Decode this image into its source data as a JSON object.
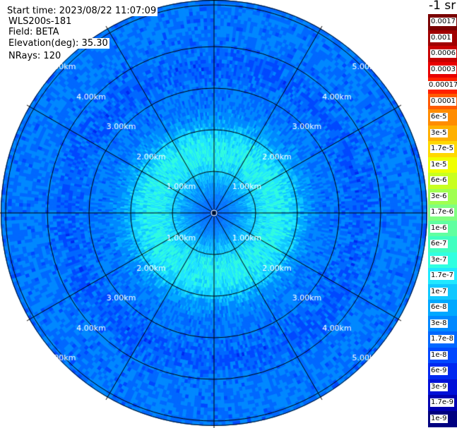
{
  "info": {
    "start_time": "Start time: 2023/08/22 11:07:09",
    "instrument": "WLS200s-181",
    "field": "Field: BETA",
    "elevation": "Elevation(deg): 35.30",
    "nrays": "NRays: 120"
  },
  "unit": "-1 sr",
  "colorbar": {
    "labels": [
      "0.0017",
      "0.001",
      "0.0006",
      "0.0003",
      "0.00017",
      "0.0001",
      "6e-5",
      "3e-5",
      "1.7e-5",
      "1e-5",
      "6e-6",
      "3e-6",
      "1.7e-6",
      "1e-6",
      "6e-7",
      "3e-7",
      "1.7e-7",
      "1e-7",
      "6e-8",
      "3e-8",
      "1.7e-8",
      "1e-8",
      "6e-9",
      "3e-9",
      "1.7e-9",
      "1e-9"
    ],
    "colors": [
      "#7a0000",
      "#a00000",
      "#c80000",
      "#e80000",
      "#ff2000",
      "#ff5a00",
      "#ff8c00",
      "#ffb000",
      "#ffd800",
      "#f0ff00",
      "#c8ff20",
      "#a0ff50",
      "#80ff80",
      "#60ffa0",
      "#40ffc0",
      "#30ffe0",
      "#20e8ff",
      "#10c8ff",
      "#00a8ff",
      "#0088ff",
      "#0068ff",
      "#0048ff",
      "#0028f0",
      "#0010d8",
      "#0000b0",
      "#000080"
    ]
  },
  "chart_data": {
    "type": "heatmap",
    "projection": "polar PPI",
    "field": "BETA",
    "elevation_deg": 35.3,
    "nrays": 120,
    "range_rings_km": [
      1.0,
      2.0,
      3.0,
      4.0,
      5.0
    ],
    "ring_labels": [
      "1.00km",
      "2.00km",
      "3.00km",
      "4.00km",
      "5.00km"
    ],
    "azimuth_lines_deg": [
      0,
      30,
      60,
      90,
      120,
      150,
      180,
      210,
      240,
      270,
      300,
      330
    ],
    "radial_profile": {
      "range_km": [
        0.0,
        0.3,
        0.6,
        1.0,
        1.3,
        1.6,
        1.9,
        2.2,
        2.6,
        3.0,
        3.5,
        4.0,
        4.5,
        5.0,
        5.5
      ],
      "beta": [
        "1.7e-8",
        "3e-8",
        "6e-8",
        "1.7e-7",
        "3e-7",
        "3e-7",
        "1.7e-7",
        "6e-8",
        "3e-8",
        "3e-8",
        "1.7e-8",
        "3e-8",
        "3e-8",
        "3e-8",
        "1.7e-8"
      ]
    },
    "colorscale": "log jet"
  }
}
